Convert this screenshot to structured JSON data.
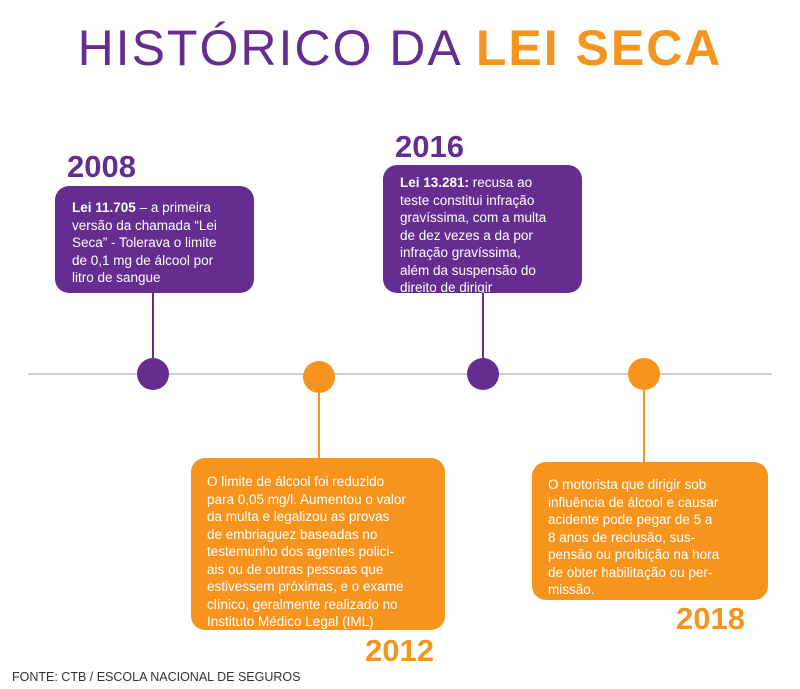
{
  "title": {
    "part1": "HISTÓRICO DA ",
    "part2": "LEI SECA"
  },
  "colors": {
    "purple": "#662d91",
    "orange": "#f7941d",
    "timeline": "#cfcfcf"
  },
  "events": [
    {
      "year": "2008",
      "bold": "Lei 11.705",
      "lines": [
        " – a primeira",
        "versão da chamada “Lei",
        "Seca” - Tolerava o limite",
        "de 0,1 mg de álcool por",
        "litro de sangue"
      ]
    },
    {
      "year": "2012",
      "lines": [
        "O limite de álcool foi reduzido",
        "para 0,05 mg/l. Aumentou o valor",
        "da multa e legalizou as provas",
        "de embriaguez baseadas no",
        "testemunho dos agentes polici-",
        "ais ou de outras pessoas que",
        "estivessem próximas, e o exame",
        "clínico, geralmente realizado no",
        "Instituto Médico Legal (IML)"
      ]
    },
    {
      "year": "2016",
      "bold": "Lei 13.281:",
      "lines": [
        " recusa ao",
        "teste constitui infração",
        "gravíssima, com a multa",
        "de dez vezes a da por",
        "infração gravíssima,",
        "além da suspensão do",
        "direito de dirigir"
      ]
    },
    {
      "year": "2018",
      "lines": [
        "O motorista que dirigir sob",
        "influência de álcool e causar",
        "acidente pode pegar de 5 a",
        "8 anos de reclusão, sus-",
        "pensão ou proibição na hora",
        "de obter habilitação ou per-",
        "missão."
      ]
    }
  ],
  "footer": "FONTE: CTB / ESCOLA NACIONAL DE SEGUROS"
}
